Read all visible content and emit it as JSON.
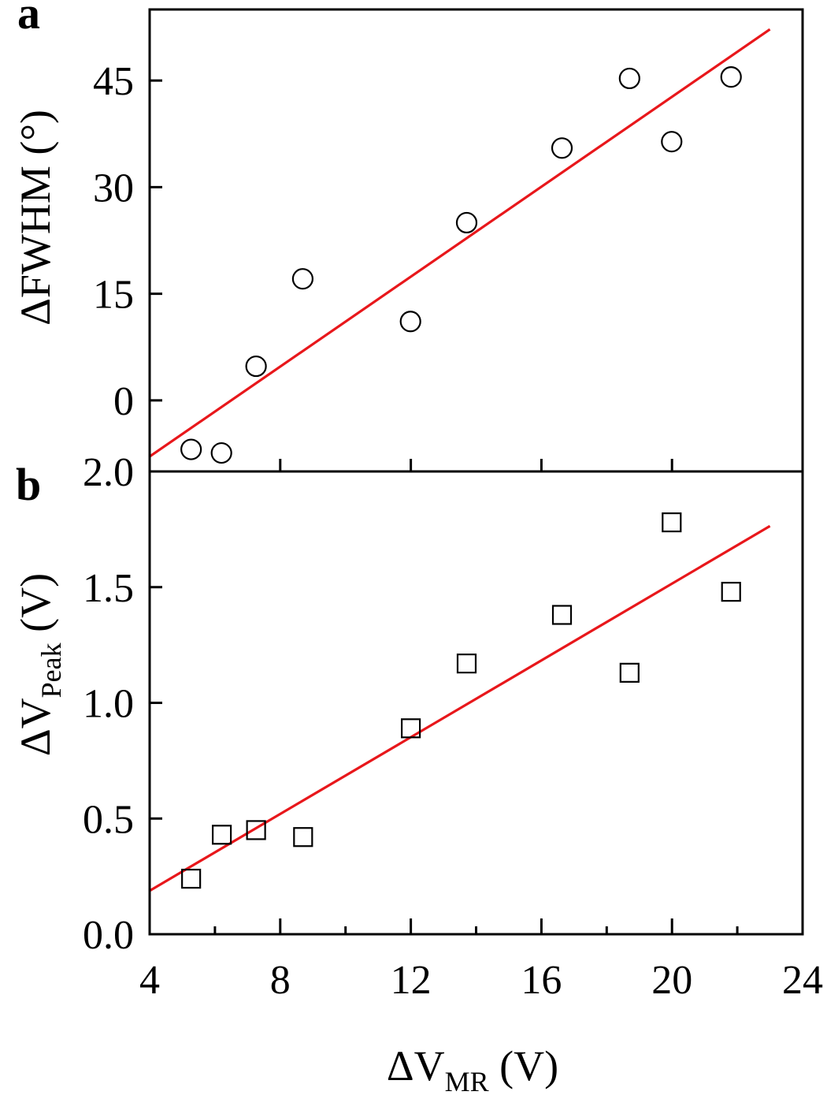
{
  "figure": {
    "panel_a_letter": "a",
    "panel_b_letter": "b",
    "xlabel_main": "ΔV",
    "xlabel_sub": "MR",
    "xlabel_unit": " (V)",
    "ylabel_a": "ΔFWHM (°)",
    "ylabel_b_main": "ΔV",
    "ylabel_b_sub": "Peak",
    "ylabel_b_unit": " (V)",
    "colors": {
      "fit_line": "#e8171b",
      "markers": "#000000",
      "axes": "#000000"
    }
  },
  "chart_data": [
    {
      "panel": "a",
      "type": "scatter",
      "title": "",
      "xlabel": "ΔV_MR (V)",
      "ylabel": "ΔFWHM (°)",
      "xlim": [
        4,
        24
      ],
      "ylim": [
        -10,
        55
      ],
      "xticks": [
        8,
        12,
        16,
        20
      ],
      "yticks": [
        0,
        15,
        30,
        45
      ],
      "ytick_labels": [
        "0",
        "15",
        "30",
        "45"
      ],
      "grid": false,
      "marker": "open-circle",
      "series": [
        {
          "name": "data",
          "x": [
            5.27,
            6.2,
            7.26,
            8.69,
            11.99,
            13.71,
            16.63,
            18.7,
            19.99,
            21.81
          ],
          "y": [
            -6.9,
            -7.4,
            4.8,
            17.1,
            11.1,
            25.0,
            35.5,
            45.3,
            36.4,
            45.5
          ]
        },
        {
          "name": "linear fit",
          "type": "line",
          "color": "#e8171b",
          "x": [
            4,
            23
          ],
          "y": [
            -7.9,
            52.2
          ]
        }
      ]
    },
    {
      "panel": "b",
      "type": "scatter",
      "title": "",
      "xlabel": "ΔV_MR (V)",
      "ylabel": "ΔV_Peak (V)",
      "xlim": [
        4,
        24
      ],
      "ylim": [
        0.0,
        2.0
      ],
      "xticks": [
        4,
        8,
        12,
        16,
        20,
        24
      ],
      "xtick_labels": [
        "4",
        "8",
        "12",
        "16",
        "20",
        "24"
      ],
      "xminor_ticks": [
        6,
        10,
        14,
        18,
        22
      ],
      "yticks": [
        0.0,
        0.5,
        1.0,
        1.5,
        2.0
      ],
      "ytick_labels": [
        "0.0",
        "0.5",
        "1.0",
        "1.5",
        "2.0"
      ],
      "grid": false,
      "marker": "open-square",
      "series": [
        {
          "name": "data",
          "x": [
            5.27,
            6.21,
            7.26,
            8.7,
            12.0,
            13.71,
            16.63,
            18.7,
            19.99,
            21.81
          ],
          "y": [
            0.24,
            0.43,
            0.45,
            0.42,
            0.89,
            1.17,
            1.38,
            1.13,
            1.78,
            1.48
          ]
        },
        {
          "name": "linear fit",
          "type": "line",
          "color": "#e8171b",
          "x": [
            4,
            23
          ],
          "y": [
            0.188,
            1.764
          ]
        }
      ]
    }
  ]
}
